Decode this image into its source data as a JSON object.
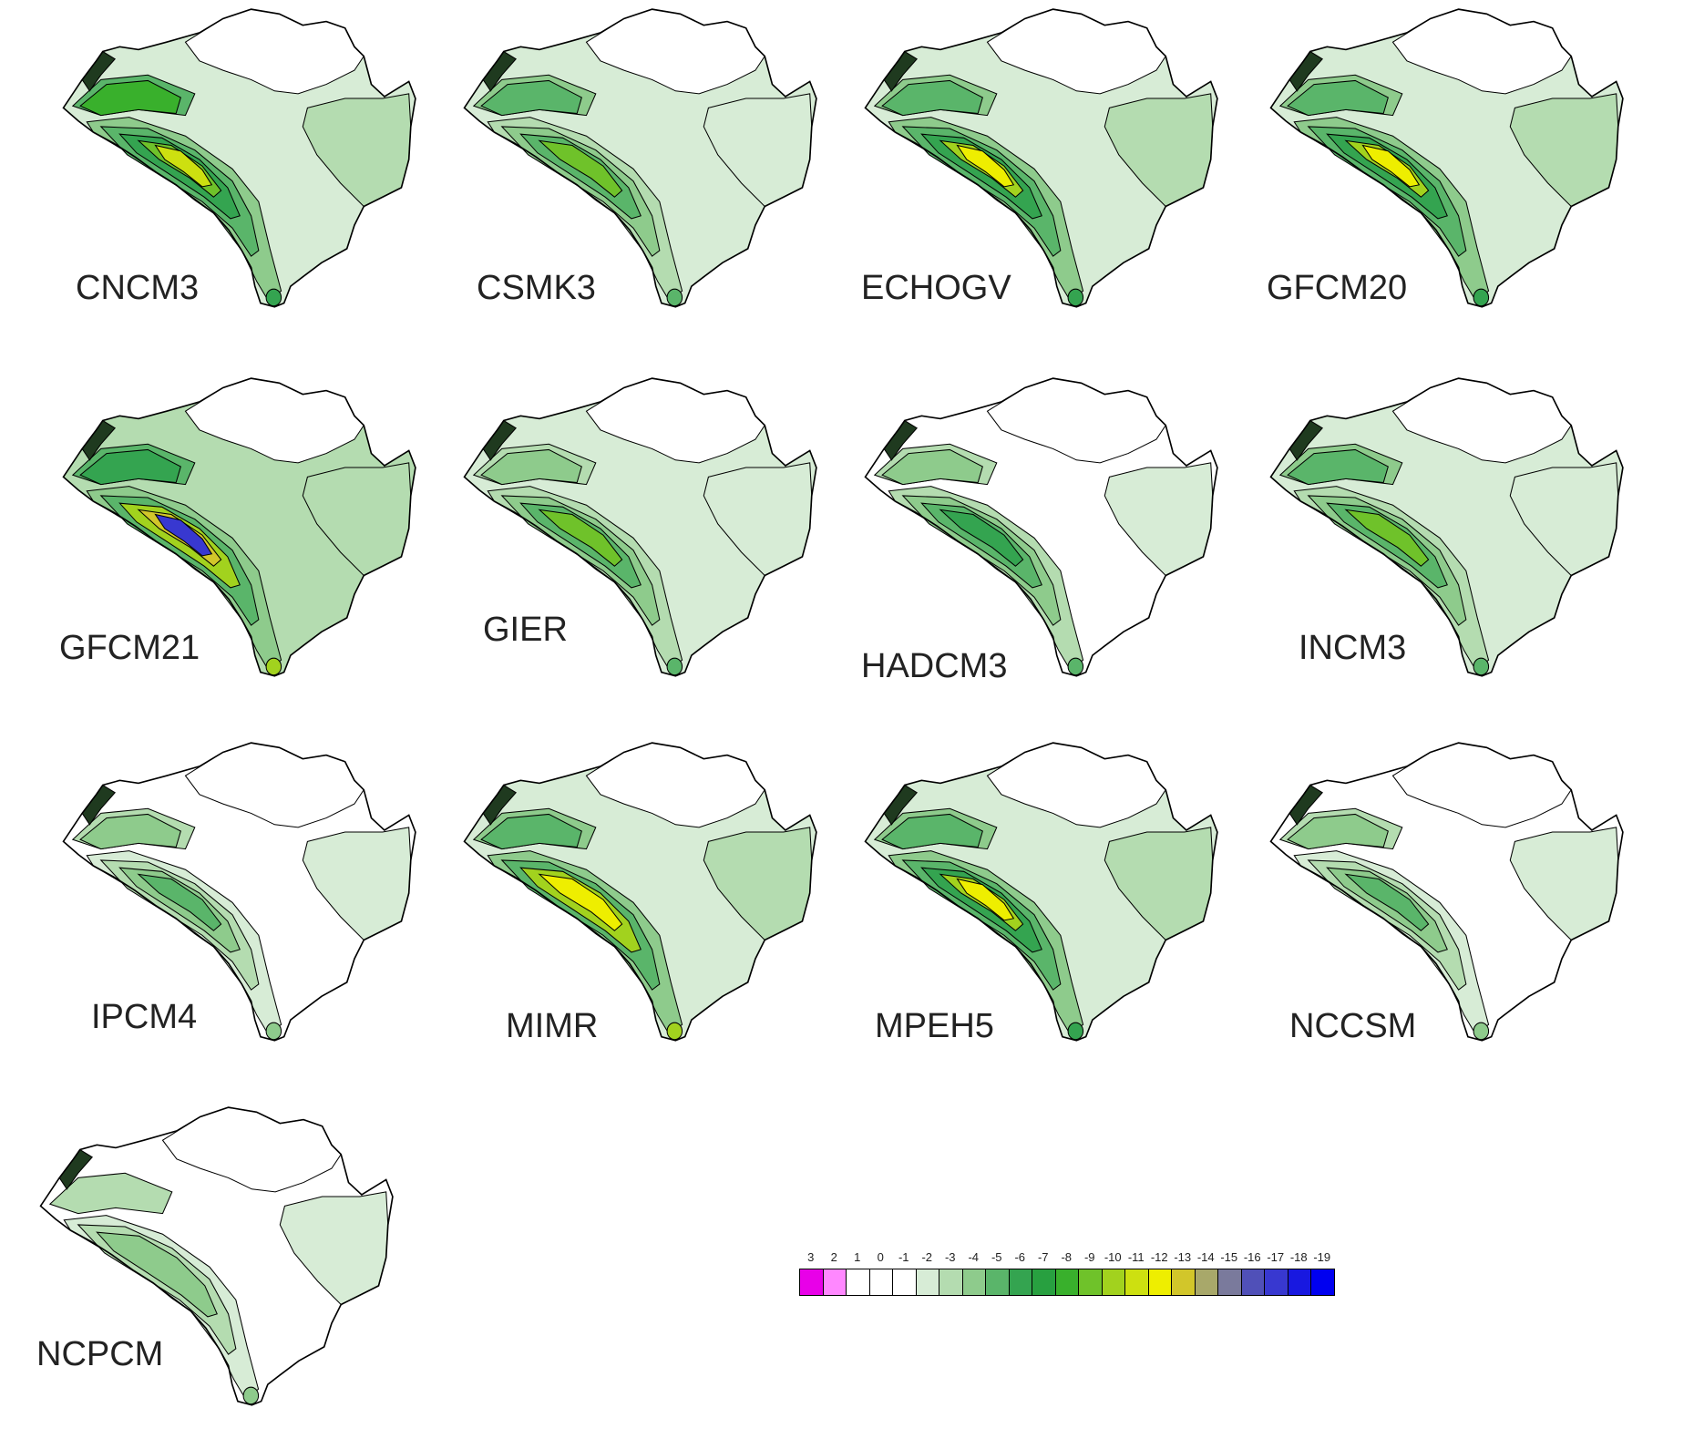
{
  "panels": [
    {
      "label": "CNCM3",
      "variant": "strong-bright"
    },
    {
      "label": "CSMK3",
      "variant": "moderate-whiteN"
    },
    {
      "label": "ECHOGV",
      "variant": "strong-yellow"
    },
    {
      "label": "GFCM20",
      "variant": "strong-yellow"
    },
    {
      "label": "GFCM21",
      "variant": "extreme-blue"
    },
    {
      "label": "GIER",
      "variant": "moderate"
    },
    {
      "label": "HADCM3",
      "variant": "moderate-whiteS"
    },
    {
      "label": "INCM3",
      "variant": "moderate-whiteN"
    },
    {
      "label": "IPCM4",
      "variant": "weak"
    },
    {
      "label": "MIMR",
      "variant": "strong-whiteN"
    },
    {
      "label": "MPEH5",
      "variant": "strong-yellow"
    },
    {
      "label": "NCCSM",
      "variant": "weak"
    },
    {
      "label": "NCPCM",
      "variant": "weakest"
    }
  ],
  "legend": {
    "labels": [
      "3",
      "2",
      "1",
      "0",
      "-1",
      "-2",
      "-3",
      "-4",
      "-5",
      "-6",
      "-7",
      "-8",
      "-9",
      "-10",
      "-11",
      "-12",
      "-13",
      "-14",
      "-15",
      "-16",
      "-17",
      "-18",
      "-19"
    ],
    "colors": [
      "#e800e8",
      "#ff88ff",
      "#ffffff",
      "#ffffff",
      "#ffffff",
      "#d7ecd6",
      "#b4dcb0",
      "#8ecb8c",
      "#5ab56a",
      "#34a450",
      "#28a040",
      "#39b02c",
      "#6fc22a",
      "#a2d21e",
      "#cde010",
      "#eeee00",
      "#d2c62a",
      "#a8a86a",
      "#7a7a9c",
      "#5050b8",
      "#3838d0",
      "#1818e0",
      "#0000f0"
    ]
  }
}
